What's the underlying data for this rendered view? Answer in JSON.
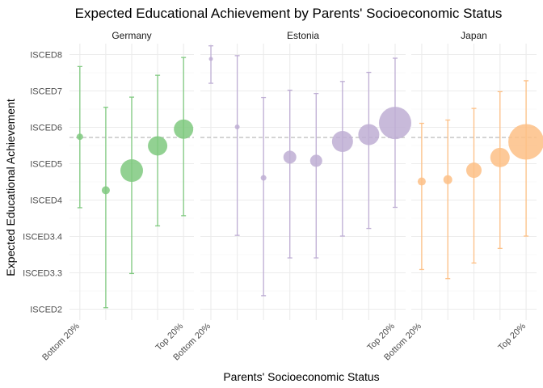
{
  "chart_data": {
    "type": "scatter",
    "title": "Expected Educational Achievement by Parents' Socioeconomic Status",
    "xlabel": "Parents' Socioeconomic Status",
    "ylabel": "Expected Educational Achievement",
    "y_ticks": [
      "ISCED2",
      "ISCED3.3",
      "ISCED3.4",
      "ISCED4",
      "ISCED5",
      "ISCED6",
      "ISCED7",
      "ISCED8"
    ],
    "ylim": [
      -0.3,
      7.3
    ],
    "reference_line": {
      "y": 4.72,
      "style": "dashed",
      "color": "#b3b3b3"
    },
    "grid": true,
    "legend": "none",
    "panels": [
      {
        "name": "Germany",
        "color": "#7fc97f",
        "categories": [
          "Bottom 20%",
          "",
          "",
          "",
          "Top 20%"
        ],
        "points": [
          {
            "x": 1,
            "y": 4.74,
            "low": 2.79,
            "high": 6.67,
            "size": 4
          },
          {
            "x": 2,
            "y": 3.27,
            "low": 0.04,
            "high": 5.55,
            "size": 5
          },
          {
            "x": 3,
            "y": 3.81,
            "low": 0.98,
            "high": 5.83,
            "size": 14
          },
          {
            "x": 4,
            "y": 4.49,
            "low": 2.29,
            "high": 6.43,
            "size": 12
          },
          {
            "x": 5,
            "y": 4.95,
            "low": 2.57,
            "high": 6.92,
            "size": 12
          }
        ]
      },
      {
        "name": "Estonia",
        "color": "#beaed4",
        "categories": [
          "Bottom 20%",
          "",
          "",
          "",
          "",
          "",
          "",
          "Top 20%"
        ],
        "points": [
          {
            "x": 1,
            "y": 6.88,
            "low": 6.21,
            "high": 7.24,
            "size": 2.5
          },
          {
            "x": 2,
            "y": 5.01,
            "low": 2.03,
            "high": 6.97,
            "size": 3
          },
          {
            "x": 3,
            "y": 3.61,
            "low": 0.37,
            "high": 5.82,
            "size": 3.5
          },
          {
            "x": 4,
            "y": 4.18,
            "low": 1.41,
            "high": 6.02,
            "size": 8
          },
          {
            "x": 5,
            "y": 4.08,
            "low": 1.41,
            "high": 5.93,
            "size": 7.5
          },
          {
            "x": 6,
            "y": 4.61,
            "low": 2.01,
            "high": 6.26,
            "size": 13
          },
          {
            "x": 7,
            "y": 4.8,
            "low": 2.22,
            "high": 6.51,
            "size": 13
          },
          {
            "x": 8,
            "y": 5.12,
            "low": 2.8,
            "high": 6.9,
            "size": 20
          }
        ]
      },
      {
        "name": "Japan",
        "color": "#fdc086",
        "categories": [
          "Bottom 20%",
          "",
          "",
          "",
          "Top 20%"
        ],
        "points": [
          {
            "x": 1,
            "y": 3.51,
            "low": 1.09,
            "high": 5.11,
            "size": 5
          },
          {
            "x": 2,
            "y": 3.56,
            "low": 0.84,
            "high": 5.2,
            "size": 5.5
          },
          {
            "x": 3,
            "y": 3.82,
            "low": 1.27,
            "high": 5.52,
            "size": 9.5
          },
          {
            "x": 4,
            "y": 4.17,
            "low": 1.67,
            "high": 5.98,
            "size": 12
          },
          {
            "x": 5,
            "y": 4.6,
            "low": 2.01,
            "high": 6.28,
            "size": 22
          }
        ]
      }
    ]
  }
}
